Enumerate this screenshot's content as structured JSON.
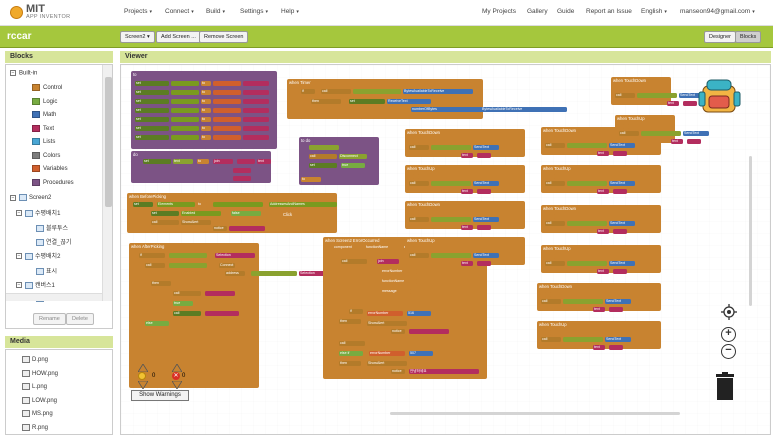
{
  "app": {
    "logo_top": "MIT",
    "logo_bottom": "APP INVENTOR"
  },
  "menus": [
    {
      "label": "Projects"
    },
    {
      "label": "Connect"
    },
    {
      "label": "Build"
    },
    {
      "label": "Settings"
    },
    {
      "label": "Help"
    }
  ],
  "right_menu": {
    "my_projects": "My Projects",
    "gallery": "Gallery",
    "guide": "Guide",
    "report": "Report an Issue",
    "language": "English",
    "user": "manseon94@gmail.com"
  },
  "project": {
    "name": "rccar",
    "screen_select": "Screen2 ▾",
    "add_screen": "Add Screen ...",
    "remove_screen": "Remove Screen",
    "designer": "Designer",
    "blocks": "Blocks"
  },
  "blocks_panel": {
    "title": "Blocks",
    "builtin": "Built-in",
    "categories": [
      {
        "label": "Control",
        "color": "#c88330"
      },
      {
        "label": "Logic",
        "color": "#77ab41"
      },
      {
        "label": "Math",
        "color": "#3f71b5"
      },
      {
        "label": "Text",
        "color": "#b32d5e"
      },
      {
        "label": "Lists",
        "color": "#49a6d4"
      },
      {
        "label": "Colors",
        "color": "#7d7d7d"
      },
      {
        "label": "Variables",
        "color": "#d05f2d"
      },
      {
        "label": "Procedures",
        "color": "#7c5385"
      }
    ],
    "screen": "Screen2",
    "tree": [
      {
        "label": "수평배치1",
        "level": 1
      },
      {
        "label": "블루투스",
        "level": 2
      },
      {
        "label": "연결_끊기",
        "level": 2
      },
      {
        "label": "수평배치2",
        "level": 1
      },
      {
        "label": "표시",
        "level": 2
      },
      {
        "label": "캔버스1",
        "level": 1
      },
      {
        "label": "앞",
        "level": 2
      }
    ],
    "rename": "Rename",
    "delete": "Delete"
  },
  "media_panel": {
    "title": "Media",
    "files": [
      "D.png",
      "HOW.png",
      "L.png",
      "LOW.png",
      "MS.png",
      "R.png"
    ]
  },
  "viewer": {
    "title": "Viewer",
    "warnings_count": "0",
    "errors_count": "0",
    "show_warnings": "Show Warnings"
  },
  "blocks_text": {
    "when": "when",
    "do": "do",
    "to": "to",
    "set": "set",
    "call": "call",
    "text": "text",
    "join": "join",
    "notice": "notice",
    "number_of_bytes": "numberOfBytes",
    "touch_down": "TouchDown",
    "touch_up": "TouchUp",
    "send_text": "SendText",
    "clock_timer": "Timer",
    "before_picking": "BeforePicking",
    "after_picking": "AfterPicking",
    "error_occurred": "ErrorOccurred",
    "bytes_available": "BytesAvailableToReceive",
    "receive_text": "ReceiveText",
    "disconnect": "Disconnect",
    "elements": "Elements",
    "addresses": "AddressesAndNames",
    "enabled": "Enabled",
    "selection": "Selection",
    "connect": "Connect",
    "address": "address",
    "show_alert": "ShowAlert",
    "error_number": "errorNumber",
    "function_name": "functionName",
    "message": "message",
    "component": "component",
    "true": "true",
    "false": "false",
    "then": "then",
    "else": "else",
    "if": "if",
    "click": "Click",
    "screen2": "Screen2",
    "t516": "516",
    "t507": "507",
    "hello": "안녕하세요"
  }
}
